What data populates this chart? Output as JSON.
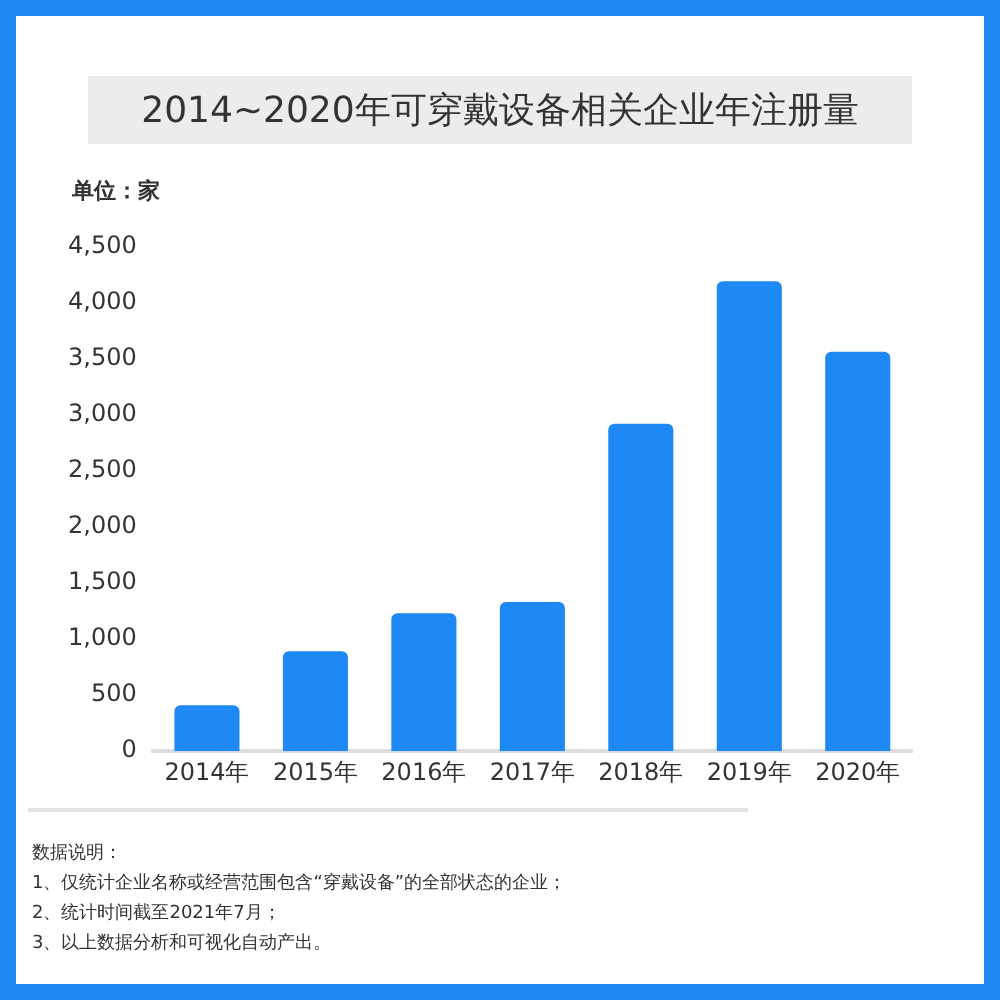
{
  "chart_data": {
    "type": "bar",
    "title": "2014~2020年可穿戴设备相关企业年注册量",
    "ylabel": "单位：家",
    "categories": [
      "2014年",
      "2015年",
      "2016年",
      "2017年",
      "2018年",
      "2019年",
      "2020年"
    ],
    "values": [
      410,
      890,
      1230,
      1330,
      2920,
      4190,
      3560
    ],
    "color": "#1e88f5",
    "ylim": [
      0,
      4500
    ],
    "yticks": [
      {
        "value": 0,
        "label": "0"
      },
      {
        "value": 500,
        "label": "500"
      },
      {
        "value": 1000,
        "label": "1,000"
      },
      {
        "value": 1500,
        "label": "1,500"
      },
      {
        "value": 2000,
        "label": "2,000"
      },
      {
        "value": 2500,
        "label": "2,500"
      },
      {
        "value": 3000,
        "label": "3,000"
      },
      {
        "value": 3500,
        "label": "3,500"
      },
      {
        "value": 4000,
        "label": "4,000"
      },
      {
        "value": 4500,
        "label": "4,500"
      }
    ],
    "grid": false,
    "legend": false,
    "annotations": [
      "数据说明：",
      "1、仅统计企业名称或经营范围包含“穿戴设备”的全部状态的企业；",
      "2、统计时间截至2021年7月；",
      "3、以上数据分析和可视化自动产出。"
    ]
  }
}
